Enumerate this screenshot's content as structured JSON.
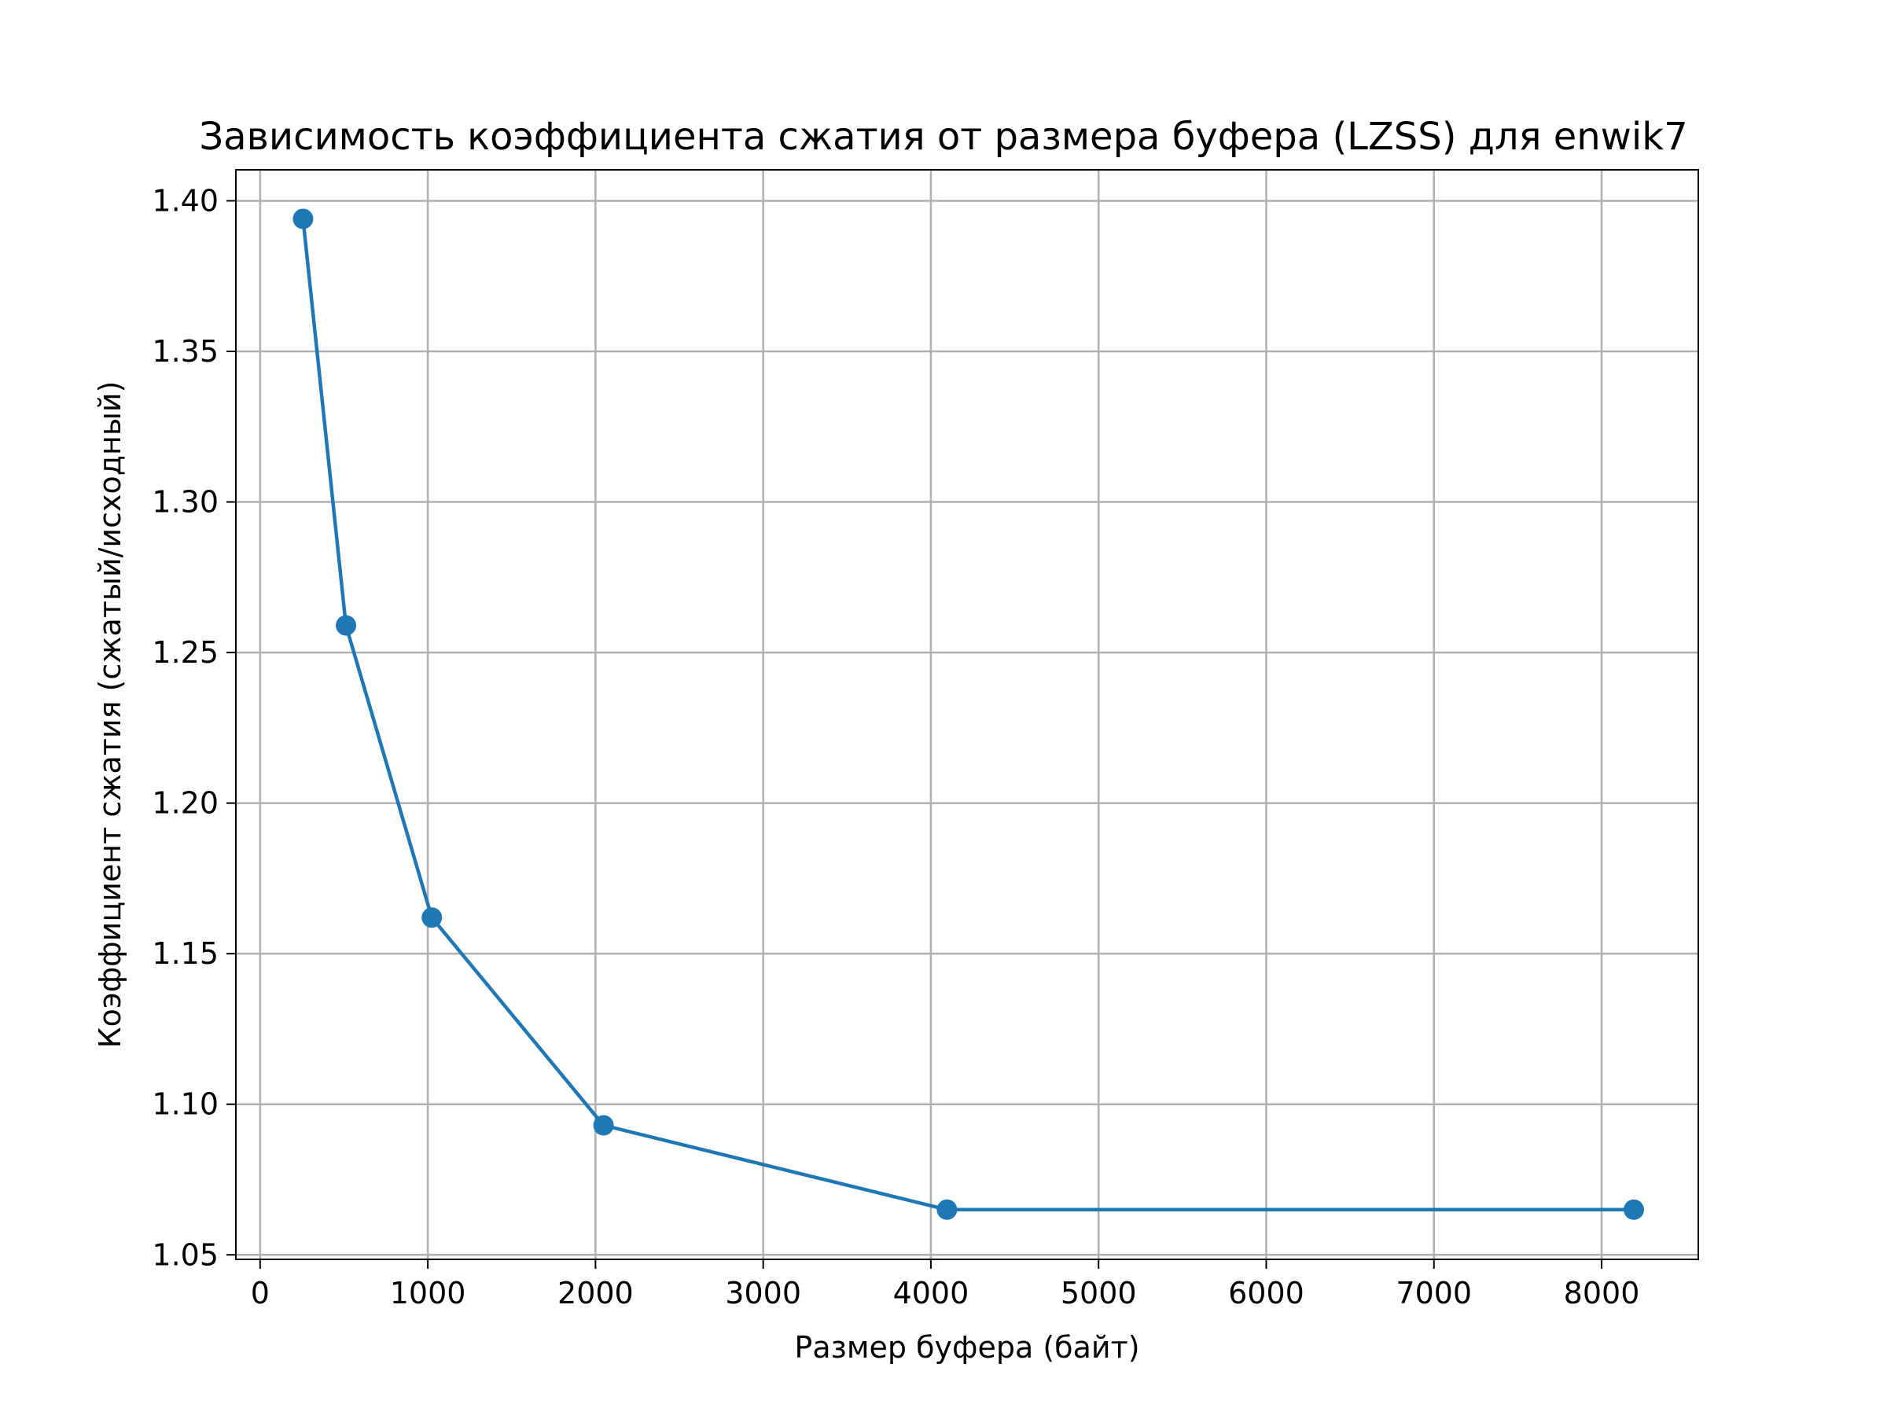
{
  "chart_data": {
    "type": "line",
    "title": "Зависимость коэффициента сжатия от размера буфера (LZSS) для enwik7",
    "xlabel": "Размер буфера (байт)",
    "ylabel": "Коэффициент сжатия (сжатый/исходный)",
    "xlim": [
      -144.6,
      8576.5
    ],
    "ylim": [
      1.0485,
      1.4103
    ],
    "xticks": [
      0,
      1000,
      2000,
      3000,
      4000,
      5000,
      6000,
      7000,
      8000
    ],
    "xtick_labels": [
      "0",
      "1000",
      "2000",
      "3000",
      "4000",
      "5000",
      "6000",
      "7000",
      "8000"
    ],
    "yticks": [
      1.05,
      1.1,
      1.15,
      1.2,
      1.25,
      1.3,
      1.35,
      1.4
    ],
    "ytick_labels": [
      "1.05",
      "1.10",
      "1.15",
      "1.20",
      "1.25",
      "1.30",
      "1.35",
      "1.40"
    ],
    "grid": true,
    "legend": "none",
    "series": [
      {
        "color": "#1f77b4",
        "marker": "circle",
        "x": [
          256,
          512,
          1024,
          2048,
          4096,
          8192
        ],
        "y": [
          1.394,
          1.259,
          1.162,
          1.093,
          1.065,
          1.065
        ]
      }
    ]
  }
}
